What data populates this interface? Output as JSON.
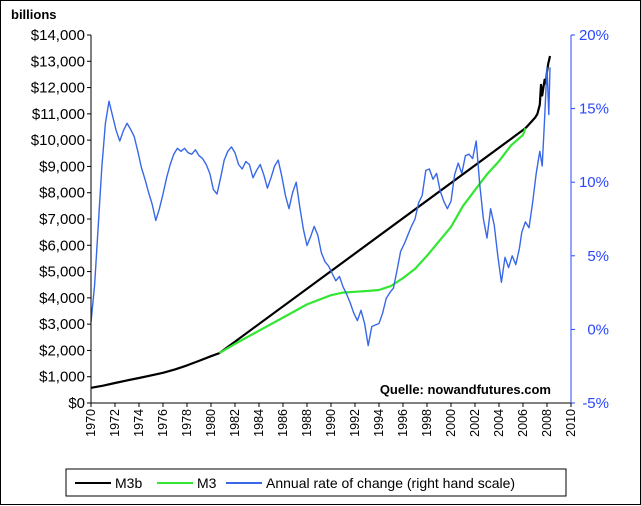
{
  "chart_data": {
    "type": "line",
    "unit_label": "billions",
    "source": "Quelle: nowandfutures.com",
    "x_range": [
      1970,
      2010
    ],
    "x_ticks": [
      "1970",
      "1972",
      "1974",
      "1976",
      "1978",
      "1980",
      "1982",
      "1984",
      "1986",
      "1988",
      "1990",
      "1992",
      "1994",
      "1996",
      "1998",
      "2000",
      "2002",
      "2004",
      "2006",
      "2008",
      "2010"
    ],
    "y_left": {
      "range": [
        0,
        14000
      ],
      "ticks": [
        0,
        1000,
        2000,
        3000,
        4000,
        5000,
        6000,
        7000,
        8000,
        9000,
        10000,
        11000,
        12000,
        13000,
        14000
      ],
      "tick_labels": [
        "$0",
        "$1,000",
        "$2,000",
        "$3,000",
        "$4,000",
        "$5,000",
        "$6,000",
        "$7,000",
        "$8,000",
        "$9,000",
        "$10,000",
        "$11,000",
        "$12,000",
        "$13,000",
        "$14,000"
      ]
    },
    "y_right": {
      "range": [
        -5,
        20
      ],
      "ticks": [
        -5,
        0,
        5,
        10,
        15,
        20
      ],
      "tick_labels": [
        "-5%",
        "0%",
        "5%",
        "10%",
        "15%",
        "20%"
      ]
    },
    "series": [
      {
        "name": "M3b",
        "axis": "left",
        "color": "#000000",
        "points": [
          [
            1970,
            580
          ],
          [
            1971,
            660
          ],
          [
            1972,
            760
          ],
          [
            1973,
            860
          ],
          [
            1974,
            950
          ],
          [
            1975,
            1050
          ],
          [
            1976,
            1150
          ],
          [
            1977,
            1280
          ],
          [
            1978,
            1430
          ],
          [
            1979,
            1600
          ],
          [
            1980,
            1780
          ],
          [
            1980.7,
            1900
          ],
          [
            2006.2,
            10450
          ],
          [
            2006.5,
            10600
          ],
          [
            2006.8,
            10750
          ],
          [
            2007,
            10850
          ],
          [
            2007.2,
            11000
          ],
          [
            2007.4,
            11350
          ],
          [
            2007.5,
            12100
          ],
          [
            2007.6,
            11700
          ],
          [
            2007.8,
            12300
          ],
          [
            2007.9,
            12150
          ],
          [
            2008,
            12600
          ],
          [
            2008.1,
            12900
          ],
          [
            2008.2,
            13100
          ],
          [
            2008.25,
            13200
          ]
        ]
      },
      {
        "name": "M3",
        "axis": "left",
        "color": "#33e633",
        "points": [
          [
            1980.7,
            1900
          ],
          [
            1982,
            2250
          ],
          [
            1984,
            2750
          ],
          [
            1986,
            3250
          ],
          [
            1988,
            3750
          ],
          [
            1990,
            4100
          ],
          [
            1991,
            4200
          ],
          [
            1992,
            4230
          ],
          [
            1993,
            4260
          ],
          [
            1994,
            4300
          ],
          [
            1995,
            4450
          ],
          [
            1996,
            4750
          ],
          [
            1997,
            5100
          ],
          [
            1998,
            5600
          ],
          [
            1999,
            6150
          ],
          [
            2000,
            6700
          ],
          [
            2001,
            7500
          ],
          [
            2002,
            8100
          ],
          [
            2003,
            8700
          ],
          [
            2004,
            9200
          ],
          [
            2005,
            9800
          ],
          [
            2006,
            10200
          ],
          [
            2006.2,
            10450
          ]
        ]
      },
      {
        "name": "Annual rate of change (right hand scale)",
        "axis": "right",
        "color": "#3868e8",
        "points": [
          [
            1970,
            0.5
          ],
          [
            1970.3,
            3
          ],
          [
            1970.6,
            7
          ],
          [
            1970.9,
            11
          ],
          [
            1971.2,
            14
          ],
          [
            1971.5,
            15.5
          ],
          [
            1971.8,
            14.5
          ],
          [
            1972.1,
            13.5
          ],
          [
            1972.4,
            12.8
          ],
          [
            1972.7,
            13.5
          ],
          [
            1973,
            14
          ],
          [
            1973.3,
            13.6
          ],
          [
            1973.6,
            13.1
          ],
          [
            1973.9,
            12.1
          ],
          [
            1974.2,
            11
          ],
          [
            1974.5,
            10.2
          ],
          [
            1974.8,
            9.3
          ],
          [
            1975.1,
            8.5
          ],
          [
            1975.4,
            7.4
          ],
          [
            1975.7,
            8.2
          ],
          [
            1976,
            9.2
          ],
          [
            1976.3,
            10.3
          ],
          [
            1976.6,
            11.2
          ],
          [
            1976.9,
            11.9
          ],
          [
            1977.2,
            12.3
          ],
          [
            1977.5,
            12.1
          ],
          [
            1977.8,
            12.3
          ],
          [
            1978.1,
            12
          ],
          [
            1978.4,
            11.9
          ],
          [
            1978.7,
            12.2
          ],
          [
            1979,
            11.8
          ],
          [
            1979.3,
            11.6
          ],
          [
            1979.6,
            11.2
          ],
          [
            1979.9,
            10.6
          ],
          [
            1980.2,
            9.5
          ],
          [
            1980.5,
            9.2
          ],
          [
            1980.8,
            10.3
          ],
          [
            1981.1,
            11.5
          ],
          [
            1981.4,
            12.1
          ],
          [
            1981.7,
            12.4
          ],
          [
            1982,
            12
          ],
          [
            1982.3,
            11.2
          ],
          [
            1982.6,
            10.9
          ],
          [
            1982.9,
            11.4
          ],
          [
            1983.2,
            11.2
          ],
          [
            1983.5,
            10.3
          ],
          [
            1983.8,
            10.8
          ],
          [
            1984.1,
            11.2
          ],
          [
            1984.4,
            10.5
          ],
          [
            1984.7,
            9.6
          ],
          [
            1985,
            10.3
          ],
          [
            1985.3,
            11.1
          ],
          [
            1985.6,
            11.5
          ],
          [
            1985.9,
            10.4
          ],
          [
            1986.2,
            9.1
          ],
          [
            1986.5,
            8.2
          ],
          [
            1986.8,
            9.3
          ],
          [
            1987.1,
            10
          ],
          [
            1987.4,
            8.3
          ],
          [
            1987.7,
            6.8
          ],
          [
            1988,
            5.7
          ],
          [
            1988.3,
            6.3
          ],
          [
            1988.6,
            7
          ],
          [
            1988.9,
            6.4
          ],
          [
            1989.2,
            5.2
          ],
          [
            1989.5,
            4.6
          ],
          [
            1989.8,
            4.3
          ],
          [
            1990.1,
            3.8
          ],
          [
            1990.4,
            3.3
          ],
          [
            1990.7,
            3.6
          ],
          [
            1991,
            2.9
          ],
          [
            1991.3,
            2.4
          ],
          [
            1991.6,
            1.8
          ],
          [
            1991.9,
            1.1
          ],
          [
            1992.2,
            0.6
          ],
          [
            1992.5,
            1.3
          ],
          [
            1992.8,
            0.4
          ],
          [
            1993.1,
            -1.1
          ],
          [
            1993.4,
            0.2
          ],
          [
            1993.7,
            0.3
          ],
          [
            1994,
            0.4
          ],
          [
            1994.3,
            1.1
          ],
          [
            1994.6,
            2.1
          ],
          [
            1994.9,
            2.5
          ],
          [
            1995.2,
            2.8
          ],
          [
            1995.5,
            4
          ],
          [
            1995.8,
            5.3
          ],
          [
            1996.1,
            5.8
          ],
          [
            1996.4,
            6.4
          ],
          [
            1996.7,
            7
          ],
          [
            1997,
            7.5
          ],
          [
            1997.3,
            8.6
          ],
          [
            1997.6,
            9.1
          ],
          [
            1997.9,
            10.8
          ],
          [
            1998.2,
            10.9
          ],
          [
            1998.5,
            10.2
          ],
          [
            1998.8,
            10.6
          ],
          [
            1999.1,
            9.4
          ],
          [
            1999.4,
            8.7
          ],
          [
            1999.7,
            8.2
          ],
          [
            2000,
            8.7
          ],
          [
            2000.3,
            10.5
          ],
          [
            2000.6,
            11.3
          ],
          [
            2000.9,
            10.6
          ],
          [
            2001.2,
            11.8
          ],
          [
            2001.5,
            11.9
          ],
          [
            2001.8,
            11.6
          ],
          [
            2002.1,
            12.8
          ],
          [
            2002.4,
            9.8
          ],
          [
            2002.7,
            7.5
          ],
          [
            2003,
            6.2
          ],
          [
            2003.3,
            8.2
          ],
          [
            2003.6,
            7.1
          ],
          [
            2003.9,
            5
          ],
          [
            2004.2,
            3.2
          ],
          [
            2004.5,
            4.9
          ],
          [
            2004.8,
            4.2
          ],
          [
            2005.1,
            5
          ],
          [
            2005.4,
            4.4
          ],
          [
            2005.7,
            5.5
          ],
          [
            2005.9,
            6.6
          ],
          [
            2006.2,
            7.3
          ],
          [
            2006.5,
            6.9
          ],
          [
            2006.8,
            8.6
          ],
          [
            2007.1,
            10.6
          ],
          [
            2007.4,
            12.1
          ],
          [
            2007.6,
            11.1
          ],
          [
            2007.8,
            14.3
          ],
          [
            2008,
            17.8
          ],
          [
            2008.15,
            14.6
          ],
          [
            2008.25,
            17.8
          ]
        ]
      }
    ],
    "legend": {
      "position": "bottom-center",
      "labels": [
        "M3b",
        "M3",
        "Annual rate of change (right hand scale)"
      ]
    },
    "grid": false
  }
}
